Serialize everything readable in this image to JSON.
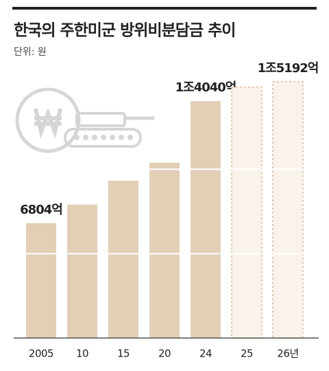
{
  "chart_data": {
    "type": "bar",
    "title": "한국의 주한미군 방위비분담금 추이",
    "subtitle": "단위: 원",
    "categories": [
      "2005",
      "10",
      "15",
      "20",
      "24",
      "25",
      "26년"
    ],
    "values": [
      6804,
      7904,
      9320,
      10389,
      14040,
      14870,
      15192
    ],
    "value_labels": [
      "6804억",
      null,
      null,
      null,
      "1조4040억",
      null,
      "1조5192억"
    ],
    "dashed": [
      false,
      false,
      false,
      false,
      false,
      true,
      true
    ],
    "color": "#e3cfb6",
    "dashed_fill": "#f9f3ec",
    "dashed_stroke": "#e6c7ad",
    "ylim": [
      0,
      16000
    ],
    "yticks": [
      5000,
      10000
    ],
    "grid": true
  }
}
